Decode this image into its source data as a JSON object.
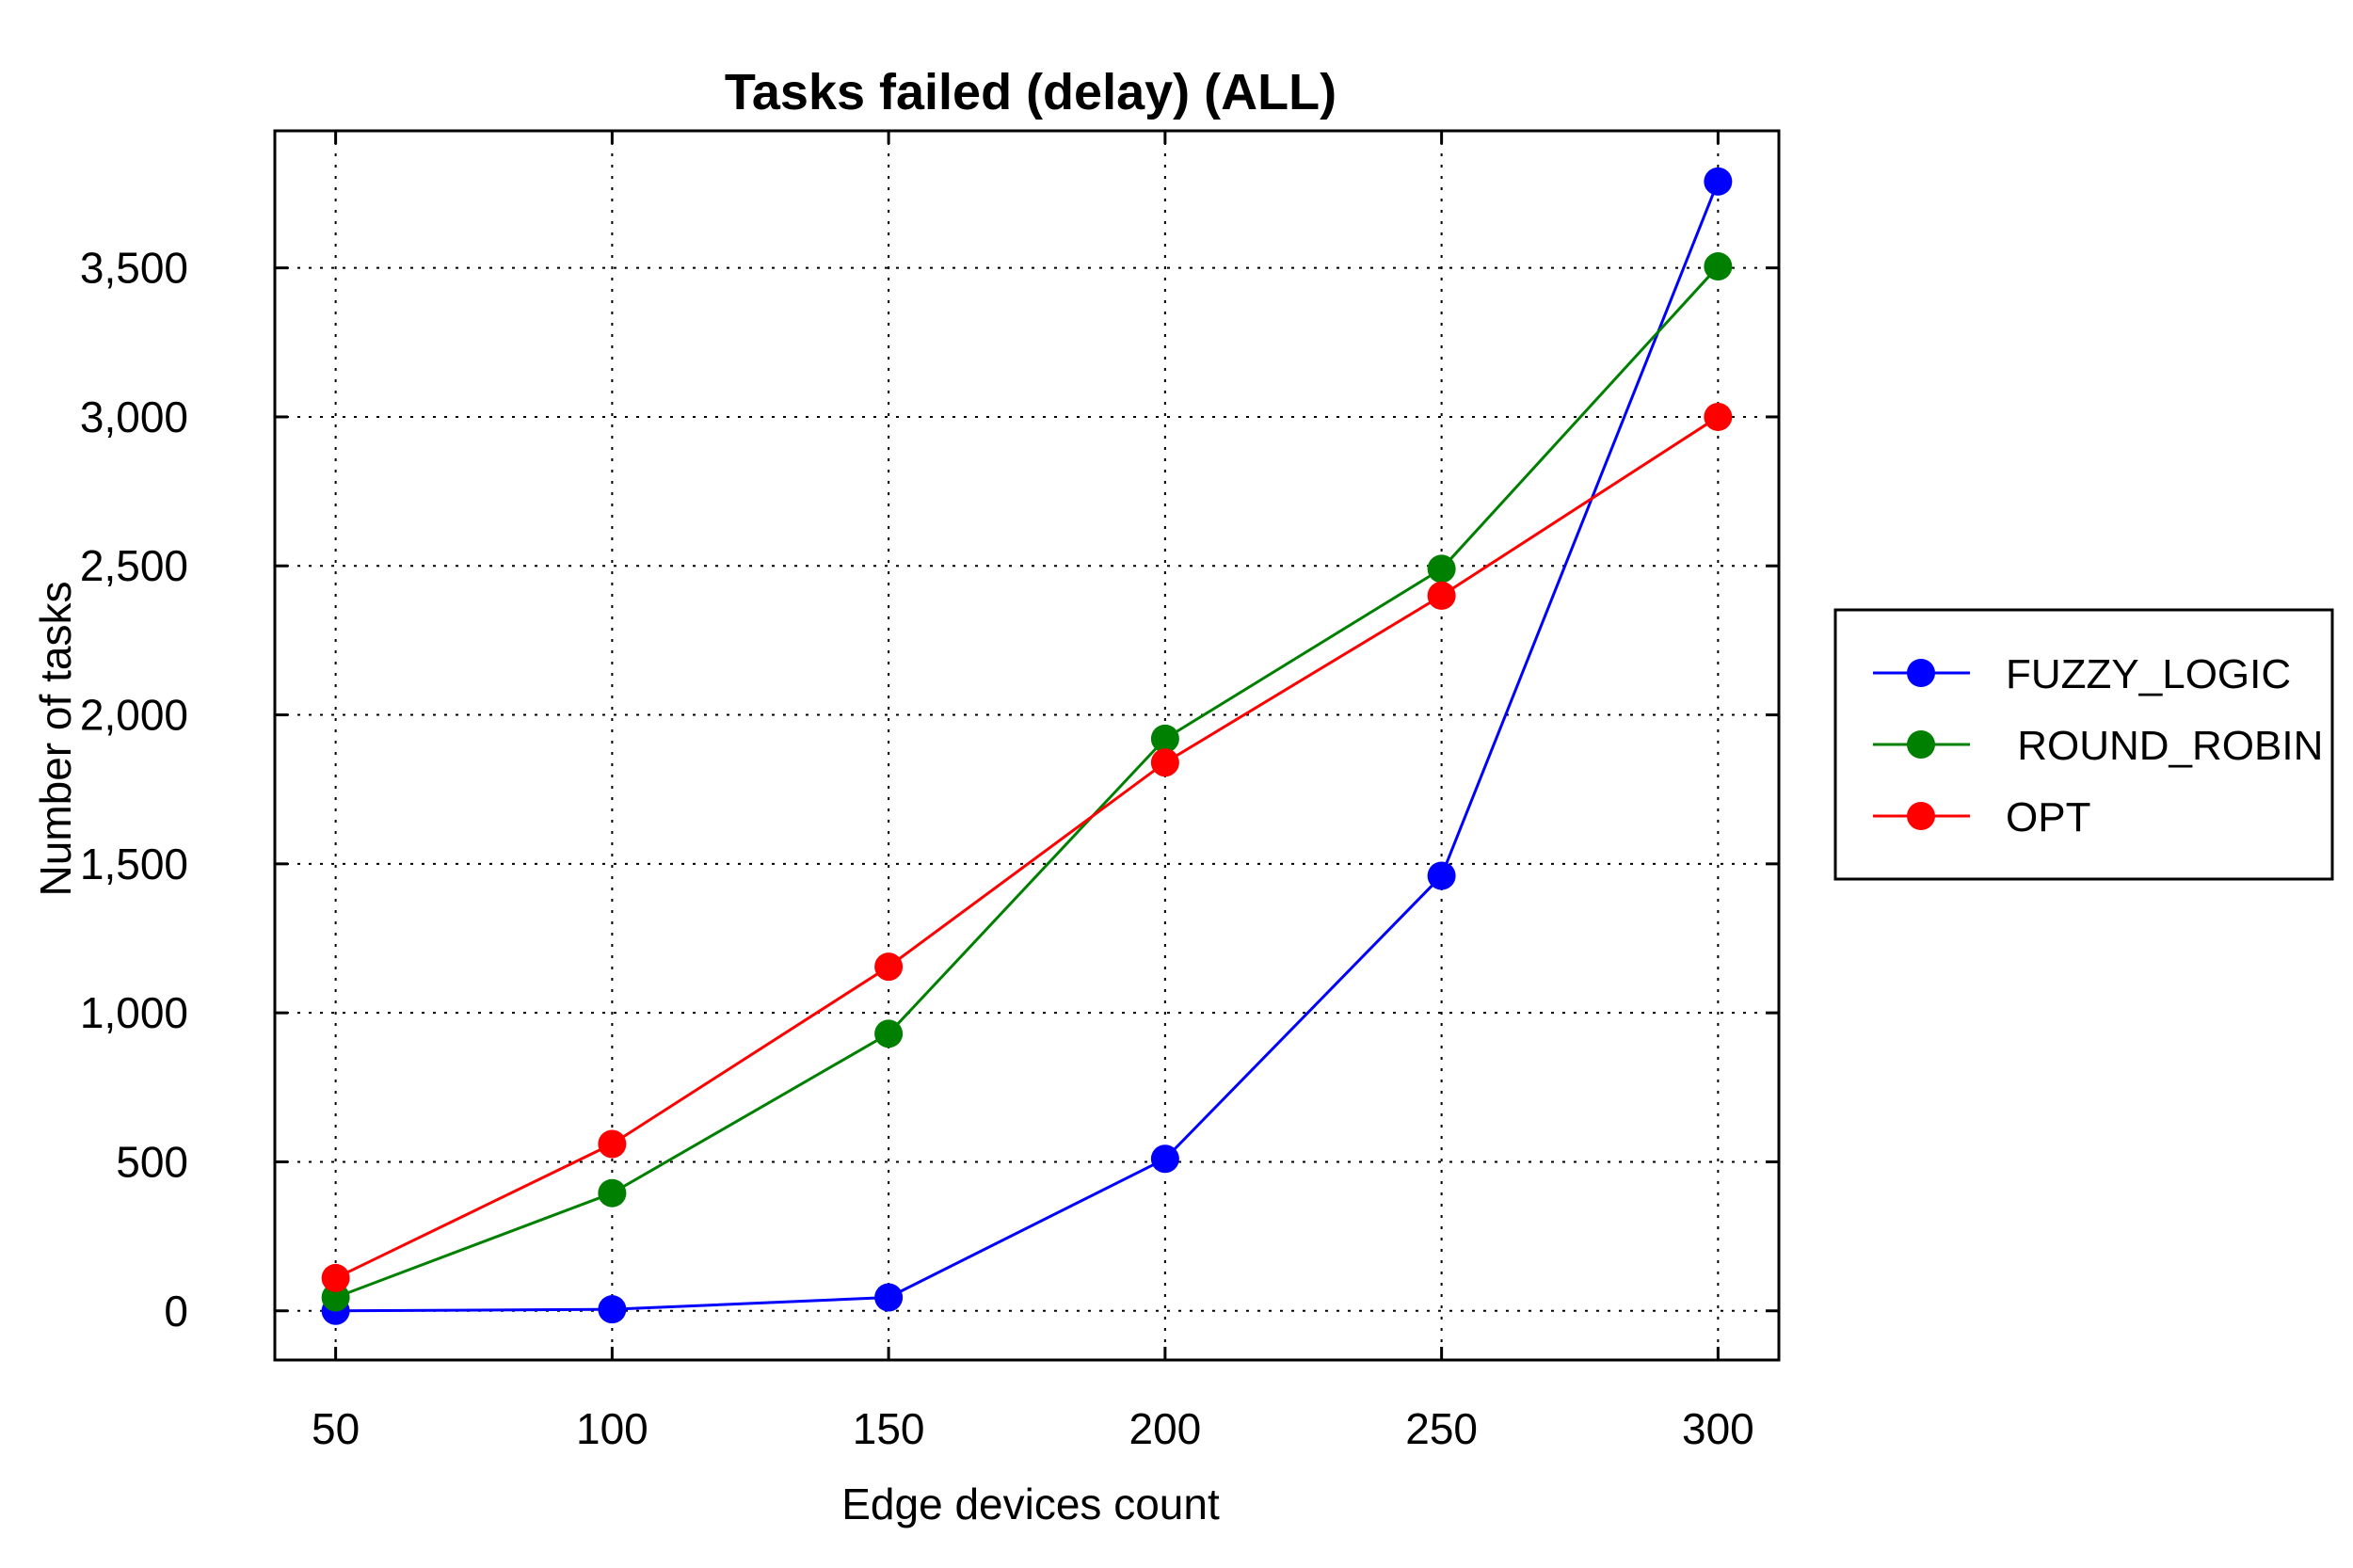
{
  "chart_data": {
    "type": "line",
    "title": "Tasks failed (delay) (ALL)",
    "xlabel": "Edge devices count",
    "ylabel": "Number of tasks",
    "x": [
      50,
      100,
      150,
      200,
      250,
      300
    ],
    "x_tick_labels": [
      "50",
      "100",
      "150",
      "200",
      "250",
      "300"
    ],
    "y_ticks": [
      0,
      500,
      1000,
      1500,
      2000,
      2500,
      3000,
      3500
    ],
    "y_tick_labels": [
      "0",
      "500",
      "1,000",
      "1,500",
      "2,000",
      "2,500",
      "3,000",
      "3,500"
    ],
    "xlim": [
      39,
      311
    ],
    "ylim": [
      -165,
      3960
    ],
    "grid": true,
    "legend_position": "right",
    "series": [
      {
        "name": "FUZZY_LOGIC",
        "color": "#0000ff",
        "values": [
          0,
          5,
          45,
          510,
          1460,
          3790
        ]
      },
      {
        "name": " ROUND_ROBIN",
        "color": "#008000",
        "values": [
          45,
          395,
          930,
          1920,
          2490,
          3505
        ]
      },
      {
        "name": "OPT",
        "color": "#ff0000",
        "values": [
          110,
          560,
          1155,
          1840,
          2400,
          3000
        ]
      }
    ]
  }
}
